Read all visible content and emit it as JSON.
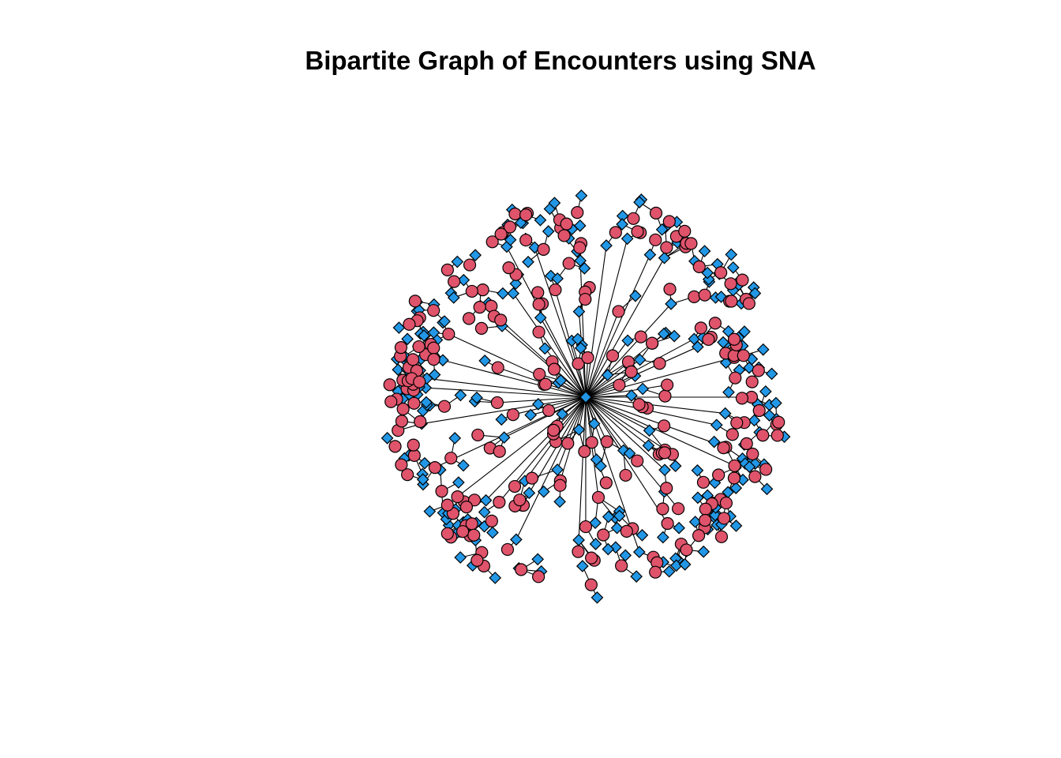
{
  "title": "Bipartite Graph of Encounters using SNA",
  "colors": {
    "circle_fill": "#DF536B",
    "diamond_fill": "#2297E6",
    "stroke": "#000000",
    "background": "#FFFFFF"
  },
  "graph": {
    "type": "bipartite network",
    "layout": "radial starburst around a central hub",
    "node_types": [
      {
        "shape": "circle",
        "color_name": "red"
      },
      {
        "shape": "diamond",
        "color_name": "blue"
      }
    ]
  }
}
